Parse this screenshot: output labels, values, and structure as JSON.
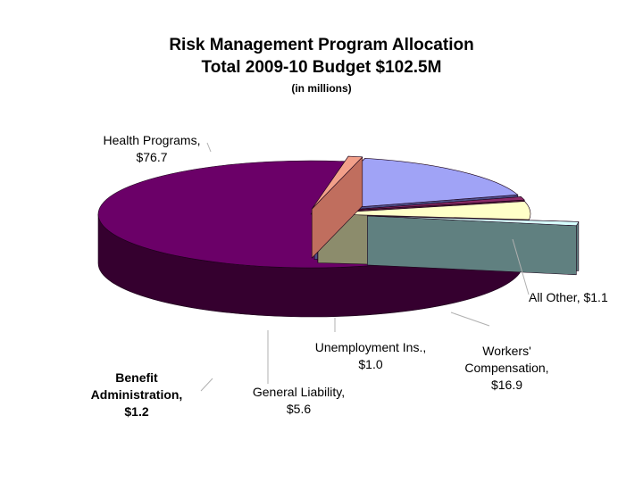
{
  "title_line1": "Risk Management Program Allocation",
  "title_line2": "Total 2009-10 Budget $102.5M",
  "subtitle": "(in millions)",
  "chart_data": {
    "type": "pie",
    "style": "3d-exploded",
    "slices": [
      {
        "name": "Health Programs",
        "value": 76.7,
        "label_name": "Health Programs,",
        "label_value": "$76.7",
        "color": "#6b0068",
        "side_color": "#35002f"
      },
      {
        "name": "All Other",
        "value": 1.1,
        "label_name": "All Other,",
        "label_value": "$1.1",
        "color": "#f2a08a",
        "side_color": "#c06e5e"
      },
      {
        "name": "Workers' Compensation",
        "value": 16.9,
        "label_name": "Workers' Compensation,",
        "label_value": "$16.9",
        "color": "#a0a3f6",
        "side_color": "#4e4e88"
      },
      {
        "name": "Unemployment Ins.",
        "value": 1.0,
        "label_name": "Unemployment Ins.,",
        "label_value": "$1.0",
        "color": "#8c2a68",
        "side_color": "#5a1d40"
      },
      {
        "name": "General Liability",
        "value": 5.6,
        "label_name": "General Liability,",
        "label_value": "$5.6",
        "color": "#ffffc8",
        "side_color": "#8c8c6c"
      },
      {
        "name": "Benefit Administration",
        "value": 1.2,
        "label_name": "Benefit Administration,",
        "label_value": "$1.2",
        "color": "#d7ffff",
        "side_color": "#608080"
      }
    ],
    "legend": "none"
  }
}
